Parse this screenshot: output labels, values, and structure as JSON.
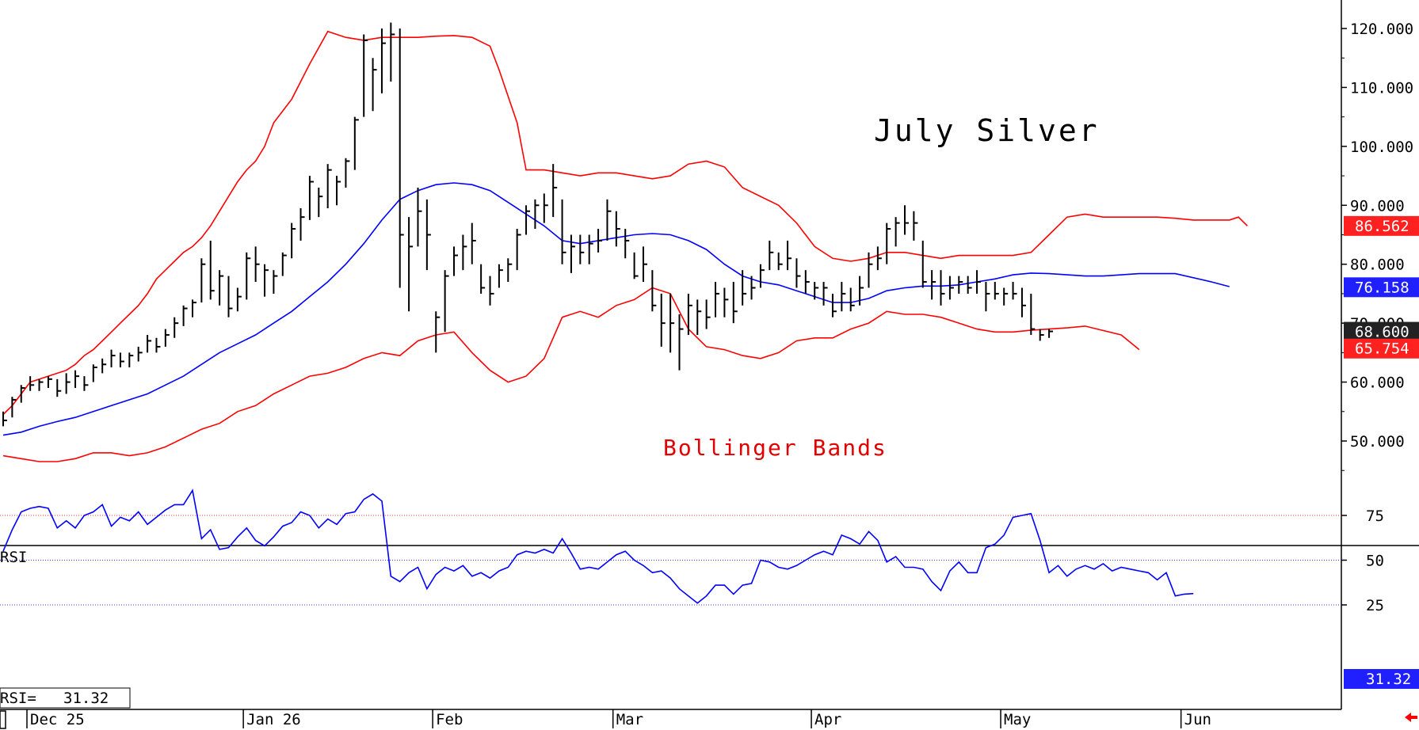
{
  "chart_data": [
    {
      "type": "ohlc",
      "title": "July Silver",
      "annotation": "Bollinger Bands",
      "ylim": [
        43,
        125
      ],
      "yticks": [
        "120.000",
        "110.000",
        "100.000",
        "90.000",
        "80.000",
        "70.000",
        "60.000",
        "50.000"
      ],
      "ytick_values": [
        120,
        110,
        100,
        90,
        80,
        70,
        60,
        50
      ],
      "x_months": [
        {
          "label": "Dec 25",
          "day": 0
        },
        {
          "label": "Jan 26",
          "day": 24
        },
        {
          "label": "Feb",
          "day": 45
        },
        {
          "label": "Mar",
          "day": 65
        },
        {
          "label": "Apr",
          "day": 87
        },
        {
          "label": "May",
          "day": 108
        },
        {
          "label": "Jun",
          "day": 128
        }
      ],
      "bars_hlc": [
        [
          55,
          52.5,
          53.5
        ],
        [
          57.5,
          54,
          57
        ],
        [
          59.5,
          56.5,
          59
        ],
        [
          61,
          58.5,
          59.5
        ],
        [
          60.5,
          58.5,
          60
        ],
        [
          61,
          59,
          60.5
        ],
        [
          60.5,
          57.5,
          58.5
        ],
        [
          61.5,
          58,
          60
        ],
        [
          62,
          59,
          61
        ],
        [
          61,
          58.5,
          59.5
        ],
        [
          63,
          60,
          62.5
        ],
        [
          64,
          61.5,
          63
        ],
        [
          65.5,
          62.5,
          64.5
        ],
        [
          65,
          62.5,
          63.5
        ],
        [
          65,
          62.5,
          64.5
        ],
        [
          66,
          63.5,
          65
        ],
        [
          68,
          65,
          67
        ],
        [
          67.5,
          65,
          66
        ],
        [
          69,
          66,
          68
        ],
        [
          71,
          67.5,
          70
        ],
        [
          73,
          69.5,
          72.5
        ],
        [
          74,
          71,
          73.5
        ],
        [
          81,
          73.5,
          80
        ],
        [
          84,
          74,
          75.5
        ],
        [
          79,
          73,
          78
        ],
        [
          78,
          71,
          72.5
        ],
        [
          76,
          72,
          74.5
        ],
        [
          82,
          74,
          81
        ],
        [
          83,
          77,
          80
        ],
        [
          80,
          74.5,
          79
        ],
        [
          79,
          75,
          78
        ],
        [
          82,
          78,
          81.5
        ],
        [
          87,
          81,
          86
        ],
        [
          89.5,
          84,
          88
        ],
        [
          95,
          87.5,
          94
        ],
        [
          93,
          88,
          91.5
        ],
        [
          97,
          89.5,
          96
        ],
        [
          95,
          90,
          94
        ],
        [
          98,
          93,
          97.5
        ],
        [
          105,
          96,
          104.5
        ],
        [
          119,
          105,
          118
        ],
        [
          115,
          106,
          113
        ],
        [
          120,
          109,
          117.5
        ],
        [
          121,
          111,
          119
        ],
        [
          120,
          76,
          85
        ],
        [
          88,
          72,
          83
        ],
        [
          93,
          83,
          89
        ],
        [
          91,
          79,
          85
        ],
        [
          72,
          65,
          71
        ],
        [
          79,
          68.5,
          78
        ],
        [
          83,
          78,
          81.5
        ],
        [
          85,
          79,
          83
        ],
        [
          87,
          80,
          84
        ],
        [
          80,
          75,
          76
        ],
        [
          78,
          73,
          75
        ],
        [
          80,
          76,
          79
        ],
        [
          81,
          77,
          80
        ],
        [
          86,
          79,
          85
        ],
        [
          90,
          85,
          89
        ],
        [
          91,
          86,
          90
        ],
        [
          92,
          87,
          90
        ],
        [
          97,
          88,
          93
        ],
        [
          91,
          80,
          82
        ],
        [
          85,
          78.5,
          83
        ],
        [
          85,
          80,
          82
        ],
        [
          85,
          80,
          83.5
        ],
        [
          86,
          82,
          84
        ],
        [
          91,
          84,
          89
        ],
        [
          89,
          83,
          86
        ],
        [
          86,
          81,
          84
        ],
        [
          82,
          77.5,
          78
        ],
        [
          83,
          77,
          80
        ],
        [
          79,
          72,
          73
        ],
        [
          75,
          66,
          70
        ],
        [
          75,
          65,
          70
        ],
        [
          71.5,
          62,
          69
        ],
        [
          75,
          68,
          73
        ],
        [
          74,
          68,
          72
        ],
        [
          74,
          69,
          71
        ],
        [
          77,
          71,
          75
        ],
        [
          76,
          71,
          74
        ],
        [
          77,
          70,
          72
        ],
        [
          79,
          73,
          75
        ],
        [
          78,
          74,
          76
        ],
        [
          80,
          76,
          79
        ],
        [
          84,
          79,
          82
        ],
        [
          82,
          79,
          80
        ],
        [
          84,
          79,
          81
        ],
        [
          81,
          76,
          78
        ],
        [
          79,
          75,
          77
        ],
        [
          77,
          74,
          76
        ],
        [
          77,
          73,
          76
        ],
        [
          75,
          71,
          72
        ],
        [
          77,
          72,
          75
        ],
        [
          76,
          72,
          73
        ],
        [
          78,
          73,
          76
        ],
        [
          82,
          76,
          80
        ],
        [
          83,
          79,
          81
        ],
        [
          87,
          80,
          86
        ],
        [
          88,
          83,
          87
        ],
        [
          90,
          85,
          87
        ],
        [
          89,
          84,
          87
        ],
        [
          84,
          76,
          77
        ],
        [
          79,
          74,
          77
        ],
        [
          79,
          73,
          75
        ],
        [
          78,
          74,
          76
        ],
        [
          78,
          75,
          77
        ],
        [
          78,
          75,
          76
        ],
        [
          79,
          75,
          77
        ],
        [
          77,
          72,
          75
        ],
        [
          77,
          74,
          75
        ],
        [
          76,
          73,
          75
        ],
        [
          77,
          74,
          75
        ],
        [
          76,
          71,
          73
        ],
        [
          75,
          68,
          69
        ],
        [
          69,
          67,
          68
        ],
        [
          69,
          67.5,
          68.6
        ]
      ],
      "upper_band": [
        54.5,
        56,
        58,
        60,
        60.5,
        61,
        61.5,
        62,
        63,
        64.5,
        65.5,
        67,
        68.5,
        70,
        71.5,
        73,
        75,
        77.5,
        79,
        80.5,
        82,
        83,
        84.5,
        86.5,
        89,
        91.5,
        94,
        96,
        97.5,
        100,
        104,
        108,
        114,
        119.5,
        118.5,
        118,
        118.5,
        118.5,
        118.5,
        118.7,
        118.8,
        118.5,
        117,
        113,
        104,
        96,
        96,
        95.5,
        95,
        95.5,
        95.5,
        95,
        94.5,
        95,
        97,
        97.5,
        96.5,
        93,
        91.5,
        90,
        87,
        83,
        81,
        80.5,
        81,
        82,
        82,
        81.5,
        81,
        81.5,
        81.5,
        81.5,
        81.5,
        82,
        85,
        88,
        88.5,
        88,
        88,
        88,
        88,
        87.8,
        87.5,
        87.5,
        87.5,
        88,
        86.5
      ],
      "upper_days": [
        0,
        1,
        2,
        3,
        4,
        5,
        6,
        7,
        8,
        9,
        10,
        11,
        12,
        13,
        14,
        15,
        16,
        17,
        18,
        19,
        20,
        21,
        22,
        23,
        24,
        25,
        26,
        27,
        28,
        29,
        30,
        32,
        34,
        36,
        38,
        40,
        42,
        44,
        46,
        48,
        50,
        52,
        54,
        55,
        57,
        58,
        60,
        62,
        64,
        66,
        68,
        70,
        72,
        74,
        76,
        78,
        80,
        82,
        84,
        86,
        88,
        90,
        92,
        94,
        96,
        98,
        100,
        102,
        104,
        106,
        108,
        110,
        112,
        114,
        116,
        118,
        120,
        122,
        124,
        126,
        128,
        130,
        132,
        134,
        136,
        137,
        138
      ],
      "middle_band": [
        51,
        51.5,
        52.5,
        53.3,
        54,
        55,
        56,
        57,
        58,
        59.5,
        61,
        63,
        65,
        66.5,
        68,
        70,
        72,
        74.5,
        77,
        80,
        83.5,
        87.5,
        91,
        92.5,
        93.5,
        93.8,
        93.5,
        92.5,
        90.5,
        88.5,
        86.5,
        84,
        83.5,
        84,
        84.5,
        85,
        85.2,
        85,
        84,
        82.5,
        80,
        78,
        77,
        76.5,
        75.5,
        74.5,
        73.5,
        73.5,
        74.2,
        75.5,
        76,
        76.3,
        76.3,
        76.5,
        77,
        77.5,
        78.2,
        78.5,
        78.4,
        78.2,
        78,
        78,
        78.4,
        78.4,
        77,
        76.2
      ],
      "middle_days": [
        0,
        2,
        4,
        6,
        8,
        10,
        12,
        14,
        16,
        18,
        20,
        22,
        24,
        26,
        28,
        30,
        32,
        34,
        36,
        38,
        40,
        42,
        44,
        46,
        48,
        50,
        52,
        54,
        56,
        58,
        60,
        62,
        64,
        66,
        68,
        70,
        72,
        74,
        76,
        78,
        80,
        82,
        84,
        86,
        88,
        90,
        92,
        94,
        96,
        98,
        100,
        102,
        104,
        106,
        108,
        110,
        112,
        114,
        116,
        118,
        120,
        122,
        126,
        130,
        134,
        136
      ],
      "lower_band": [
        47.5,
        47,
        46.5,
        46.5,
        47,
        48,
        48,
        47.5,
        48,
        49,
        50.5,
        52,
        53,
        55,
        56,
        58,
        59.5,
        61,
        61.5,
        62.5,
        64,
        65,
        64.5,
        67,
        68,
        68.5,
        65,
        62,
        60,
        61,
        64,
        71,
        72,
        71,
        73,
        74,
        76,
        75,
        69,
        66,
        65.5,
        64.5,
        64,
        65,
        67,
        67.5,
        67.5,
        69,
        70,
        72,
        71.5,
        71.5,
        71,
        70,
        69,
        68.5,
        68.5,
        68.8,
        69,
        69.2,
        69.5,
        68,
        65.5
      ],
      "lower_days": [
        0,
        2,
        4,
        6,
        8,
        10,
        12,
        14,
        16,
        18,
        20,
        22,
        24,
        26,
        28,
        30,
        32,
        34,
        36,
        38,
        40,
        42,
        44,
        46,
        48,
        50,
        52,
        54,
        56,
        58,
        60,
        62,
        64,
        66,
        68,
        70,
        72,
        74,
        76,
        78,
        80,
        82,
        84,
        86,
        88,
        90,
        92,
        94,
        96,
        98,
        100,
        102,
        104,
        106,
        108,
        110,
        112,
        114,
        116,
        118,
        120,
        124,
        126
      ],
      "badges": [
        {
          "label": "86.562",
          "value": 86.562,
          "color": "#ff2020"
        },
        {
          "label": "76.158",
          "value": 76.158,
          "color": "#2020ff"
        },
        {
          "label": "68.600",
          "value": 68.6,
          "color": "#222222"
        },
        {
          "label": "65.754",
          "value": 65.754,
          "color": "#ff2020"
        }
      ],
      "colors": {
        "upper": "#ff0000",
        "middle": "#0000ff",
        "lower": "#ff0000",
        "bars": "#000000"
      }
    },
    {
      "type": "line",
      "title": "RSI",
      "readout_label": "RSI=",
      "readout_value": "31.32",
      "ylim": [
        22,
        96
      ],
      "yticks": [
        "75",
        "50",
        "25"
      ],
      "ytick_values": [
        75,
        50,
        25
      ],
      "reference_lines": [
        {
          "value": 75,
          "color": "#ff3030"
        },
        {
          "value": 50,
          "color": "#3030ff"
        },
        {
          "value": 25,
          "color": "#3030ff"
        }
      ],
      "values": [
        55,
        67,
        77,
        79,
        80,
        79,
        68,
        72,
        68,
        75,
        77,
        81,
        69,
        74,
        72,
        77,
        70,
        74,
        78,
        81,
        81,
        89,
        62,
        67,
        56,
        57,
        63,
        68,
        61,
        58,
        63,
        69,
        71,
        77,
        75,
        68,
        73,
        70,
        76,
        77,
        84,
        87,
        83,
        41,
        38,
        43,
        46,
        34,
        42,
        46,
        44,
        47,
        41,
        43,
        40,
        44,
        46,
        53,
        55,
        54,
        56,
        54,
        62,
        54,
        45,
        46,
        45,
        49,
        53,
        55,
        50,
        47,
        43,
        44,
        40,
        34,
        30,
        26,
        30,
        36,
        36,
        31,
        36,
        37,
        50,
        49,
        46,
        45,
        47,
        50,
        53,
        55,
        53,
        64,
        62,
        59,
        66,
        61,
        49,
        52,
        46,
        46,
        45,
        38,
        33,
        44,
        49,
        43,
        43,
        57,
        59,
        64,
        74,
        75,
        76,
        61,
        43,
        47,
        41,
        45,
        47,
        45,
        48,
        44,
        46,
        45,
        44,
        43,
        39,
        43,
        30,
        31,
        31.32
      ]
    }
  ],
  "price_axis_labels": {
    "right": "price"
  },
  "corner_arrow": "arrow-left-icon"
}
